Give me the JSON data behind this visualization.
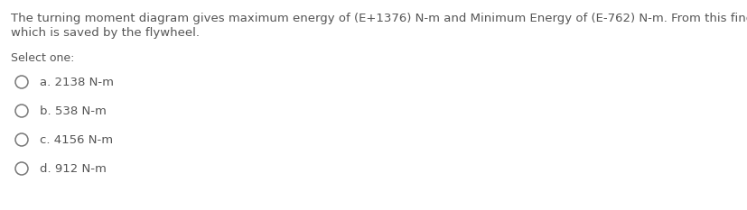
{
  "background_color": "#ffffff",
  "question_text_line1": "The turning moment diagram gives maximum energy of (E+1376) N-m and Minimum Energy of (E-762) N-m. From this find the value",
  "question_text_line2": "which is saved by the flywheel.",
  "select_one_label": "Select one:",
  "options": [
    "a. 2138 N-m",
    "b. 538 N-m",
    "c. 4156 N-m",
    "d. 912 N-m"
  ],
  "text_color": "#555555",
  "circle_color": "#777777",
  "question_fontsize": 9.5,
  "select_fontsize": 9.0,
  "option_fontsize": 9.5,
  "fig_width": 8.28,
  "fig_height": 2.33,
  "dpi": 100
}
